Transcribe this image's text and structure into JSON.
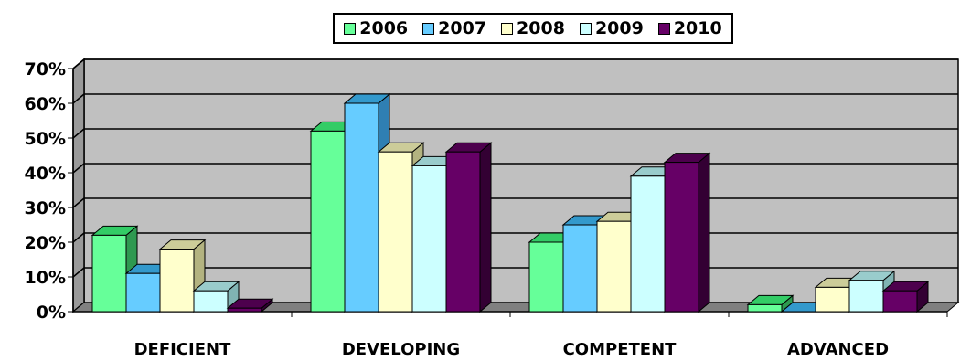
{
  "chart_data": {
    "type": "bar",
    "categories": [
      "DEFICIENT",
      "DEVELOPING",
      "COMPETENT",
      "ADVANCED"
    ],
    "series": [
      {
        "name": "2006",
        "values": [
          0.22,
          0.52,
          0.2,
          0.02
        ],
        "color": "#66ff99",
        "top": "#33cc66",
        "side": "#2e9950"
      },
      {
        "name": "2007",
        "values": [
          0.11,
          0.6,
          0.25,
          0.0
        ],
        "color": "#66ccff",
        "top": "#3399cc",
        "side": "#2f7fb3"
      },
      {
        "name": "2008",
        "values": [
          0.18,
          0.46,
          0.26,
          0.07
        ],
        "color": "#ffffcc",
        "top": "#cccc99",
        "side": "#b3b380"
      },
      {
        "name": "2009",
        "values": [
          0.06,
          0.42,
          0.39,
          0.09
        ],
        "color": "#ccffff",
        "top": "#99cccc",
        "side": "#80b3b3"
      },
      {
        "name": "2010",
        "values": [
          0.01,
          0.46,
          0.43,
          0.06
        ],
        "color": "#660066",
        "top": "#4d004d",
        "side": "#330033"
      }
    ],
    "ylim": [
      0,
      0.7
    ],
    "yticks": [
      "0%",
      "10%",
      "20%",
      "30%",
      "40%",
      "50%",
      "60%",
      "70%"
    ],
    "grid": true,
    "legend_position": "top",
    "plot_background": "#c0c0c0"
  }
}
